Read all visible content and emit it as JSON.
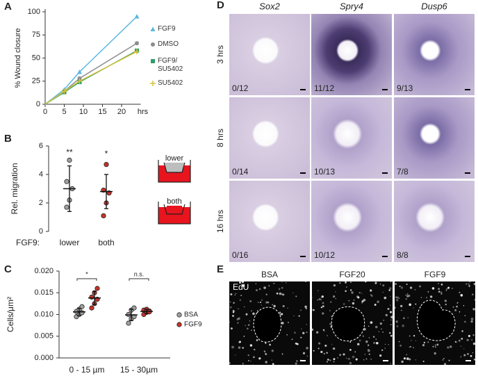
{
  "panel_letters": [
    "A",
    "B",
    "C",
    "D",
    "E"
  ],
  "chart_data": [
    {
      "type": "line",
      "ylabel": "% Wound closure",
      "xlabel": "hrs",
      "x": [
        0,
        5,
        9,
        24
      ],
      "xlim": [
        0,
        25
      ],
      "xticks": [
        0,
        5,
        10,
        15,
        20
      ],
      "ylim": [
        0,
        100
      ],
      "yticks": [
        0,
        25,
        50,
        75,
        100
      ],
      "series": [
        {
          "name": "FGF9",
          "color": "#5bb8e0",
          "marker": "triangle",
          "values": [
            0,
            16,
            35,
            95
          ]
        },
        {
          "name": "DMSO",
          "color": "#8c8c8c",
          "marker": "circle",
          "values": [
            0,
            14,
            28,
            66
          ]
        },
        {
          "name": "FGF9/ SU5402",
          "color": "#2e9e6a",
          "marker": "square",
          "values": [
            0,
            13,
            24,
            58
          ]
        },
        {
          "name": "SU5402",
          "color": "#d4c23a",
          "marker": "plus",
          "values": [
            0,
            14,
            25,
            57
          ]
        }
      ]
    },
    {
      "type": "dot",
      "ylabel": "Rel. migration",
      "xlabel": "FGF9:",
      "categories": [
        "lower",
        "both"
      ],
      "ylim": [
        0,
        6
      ],
      "yticks": [
        0,
        2,
        4,
        6
      ],
      "colors": [
        "#a0a0a0",
        "#c8332b"
      ],
      "points": [
        [
          1.7,
          2.2,
          3.0,
          3.5,
          5.0
        ],
        [
          1.1,
          2.0,
          2.7,
          2.9,
          4.7
        ]
      ],
      "means": [
        3.0,
        2.8
      ],
      "errors": [
        1.6,
        1.2
      ],
      "annotations": [
        "**",
        "*"
      ]
    },
    {
      "type": "dot",
      "ylabel": "Cells/μm²",
      "categories": [
        "0 - 15 µm",
        "15 - 30µm"
      ],
      "ylim": [
        0,
        0.02
      ],
      "yticks": [
        {
          "value": 0,
          "label": "0.000"
        },
        {
          "value": 0.005,
          "label": "0.005"
        },
        {
          "value": 0.01,
          "label": "0.010"
        },
        {
          "value": 0.015,
          "label": "0.015"
        },
        {
          "value": 0.02,
          "label": "0.020"
        }
      ],
      "series": [
        {
          "name": "BSA",
          "color": "#a0a0a0",
          "points": [
            [
              0.0095,
              0.01,
              0.0104,
              0.0107,
              0.0112,
              0.0118
            ],
            [
              0.008,
              0.009,
              0.0095,
              0.01,
              0.011,
              0.0115
            ]
          ],
          "means": [
            0.0106,
            0.0099
          ],
          "errors": [
            0.0008,
            0.0013
          ]
        },
        {
          "name": "FGF9",
          "color": "#c8332b",
          "points": [
            [
              0.0115,
              0.0125,
              0.0135,
              0.014,
              0.015,
              0.016
            ],
            [
              0.01,
              0.0105,
              0.0108,
              0.011,
              0.0112,
              0.0106
            ]
          ],
          "means": [
            0.0138,
            0.0107
          ],
          "errors": [
            0.0015,
            0.0005
          ]
        }
      ],
      "annotations": [
        "*",
        "n.s."
      ]
    }
  ],
  "schematic": {
    "labels": [
      "lower",
      "both"
    ]
  },
  "panel_d": {
    "columns": [
      "Sox2",
      "Spry4",
      "Dusp6"
    ],
    "rows": [
      "3 hrs",
      "8 hrs",
      "16 hrs"
    ],
    "counts": [
      [
        "0/12",
        "11/12",
        "9/13"
      ],
      [
        "0/14",
        "10/13",
        "7/8"
      ],
      [
        "0/16",
        "10/12",
        "8/8"
      ]
    ]
  },
  "panel_e": {
    "columns": [
      "BSA",
      "FGF20",
      "FGF9"
    ],
    "channel": "EdU"
  }
}
